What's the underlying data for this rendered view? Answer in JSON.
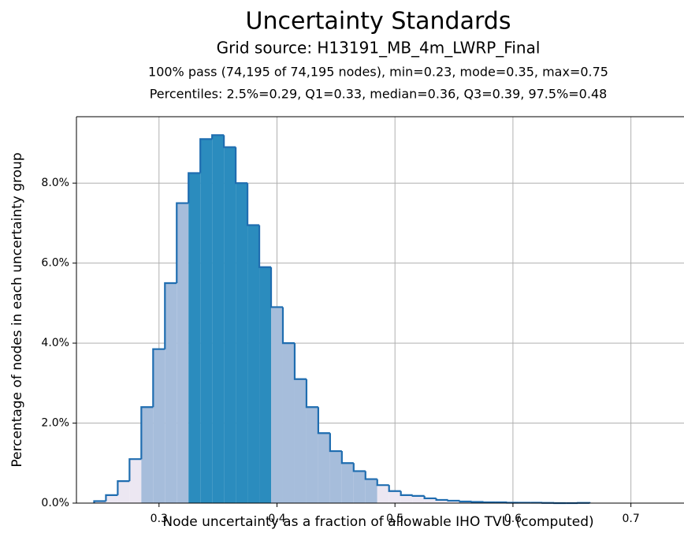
{
  "chart_data": {
    "type": "histogram",
    "title": "Uncertainty Standards",
    "subtitle": "Grid source: H13191_MB_4m_LWRP_Final",
    "annotations": [
      "100% pass (74,195 of 74,195 nodes), min=0.23, mode=0.35, max=0.75",
      "Percentiles: 2.5%=0.29, Q1=0.33, median=0.36, Q3=0.39, 97.5%=0.48"
    ],
    "x_label": "Node uncertainty as a fraction of allowable IHO TVU (computed)",
    "y_label": "Percentage of nodes in each uncertainty group",
    "bins": [
      0.245,
      0.255,
      0.265,
      0.275,
      0.285,
      0.295,
      0.305,
      0.315,
      0.325,
      0.335,
      0.345,
      0.355,
      0.365,
      0.375,
      0.385,
      0.395,
      0.405,
      0.415,
      0.425,
      0.435,
      0.445,
      0.455,
      0.465,
      0.475,
      0.485,
      0.495,
      0.505,
      0.515,
      0.525,
      0.535,
      0.545,
      0.555,
      0.565,
      0.575,
      0.585,
      0.595,
      0.605,
      0.615,
      0.625,
      0.635,
      0.645,
      0.655,
      0.665
    ],
    "values": [
      0.05,
      0.2,
      0.55,
      1.1,
      2.4,
      3.85,
      5.5,
      7.5,
      8.25,
      9.1,
      9.2,
      8.9,
      8.0,
      6.95,
      5.9,
      4.9,
      4.0,
      3.1,
      2.4,
      1.75,
      1.3,
      1.0,
      0.8,
      0.6,
      0.45,
      0.3,
      0.2,
      0.18,
      0.12,
      0.08,
      0.06,
      0.04,
      0.03,
      0.02,
      0.02,
      0.01,
      0.01,
      0.01,
      0.005,
      0,
      0,
      0.005
    ],
    "colors": [
      "#ece7f2",
      "#ece7f2",
      "#ece7f2",
      "#ece7f2",
      "#a6bddb",
      "#a6bddb",
      "#a6bddb",
      "#a6bddb",
      "#2b8cbe",
      "#2b8cbe",
      "#2b8cbe",
      "#2b8cbe",
      "#2b8cbe",
      "#2b8cbe",
      "#2b8cbe",
      "#a6bddb",
      "#a6bddb",
      "#a6bddb",
      "#a6bddb",
      "#a6bddb",
      "#a6bddb",
      "#a6bddb",
      "#a6bddb",
      "#a6bddb",
      "#ece7f2",
      "#ece7f2",
      "#ece7f2",
      "#ece7f2",
      "#ece7f2",
      "#ece7f2",
      "#ece7f2",
      "#ece7f2",
      "#ece7f2",
      "#ece7f2",
      "#ece7f2",
      "#ece7f2",
      "#ece7f2",
      "#ece7f2",
      "#ece7f2",
      "#ece7f2",
      "#ece7f2",
      "#ece7f2"
    ],
    "edge_color": "#1f6db0",
    "xlim": [
      0.23,
      0.745
    ],
    "ylim": [
      0,
      9.66
    ],
    "xticks": [
      0.3,
      0.4,
      0.5,
      0.6,
      0.7
    ],
    "yticks": [
      {
        "value": 0,
        "label": "0.0%"
      },
      {
        "value": 2,
        "label": "2.0%"
      },
      {
        "value": 4,
        "label": "4.0%"
      },
      {
        "value": 6,
        "label": "6.0%"
      },
      {
        "value": 8,
        "label": "8.0%"
      }
    ],
    "grid": true
  }
}
